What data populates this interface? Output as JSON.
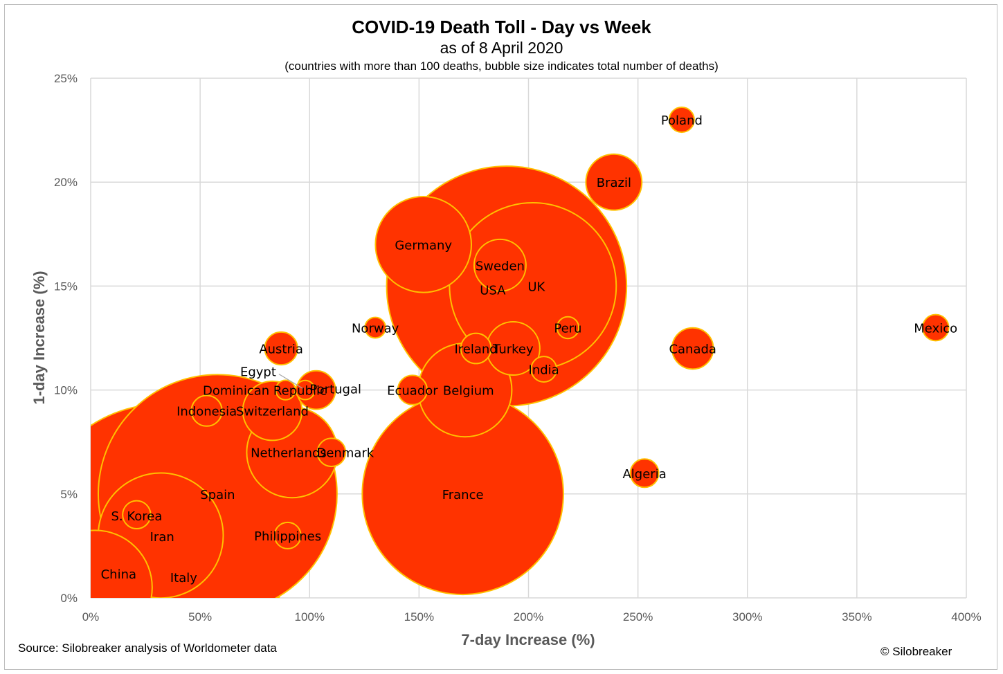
{
  "chart_data": {
    "type": "bubble",
    "title": "COVID-19 Death Toll - Day vs Week",
    "subtitle": "as of 8 April 2020",
    "note": "(countries with more than 100 deaths, bubble size indicates total number of deaths)",
    "xlabel": "7-day Increase (%)",
    "ylabel": "1-day Increase (%)",
    "xlim": [
      0,
      400
    ],
    "ylim": [
      0,
      25
    ],
    "x_ticks": [
      "0%",
      "50%",
      "100%",
      "150%",
      "200%",
      "250%",
      "300%",
      "350%",
      "400%"
    ],
    "y_ticks": [
      "0%",
      "5%",
      "10%",
      "15%",
      "20%",
      "25%"
    ],
    "grid": true,
    "colors": {
      "bubble_fill": "#ff3300",
      "bubble_stroke": "#ffc000",
      "grid": "#d9d9d9"
    },
    "points": [
      {
        "label": "China",
        "x": 2,
        "y": 0.5,
        "size": 3335
      },
      {
        "label": "Italy",
        "x": 33,
        "y": 3,
        "size": 17669
      },
      {
        "label": "Spain",
        "x": 58,
        "y": 5,
        "size": 14555
      },
      {
        "label": "Iran",
        "x": 32,
        "y": 3,
        "size": 3993
      },
      {
        "label": "S. Korea",
        "x": 21,
        "y": 4,
        "size": 200
      },
      {
        "label": "France",
        "x": 170,
        "y": 5,
        "size": 10328
      },
      {
        "label": "USA",
        "x": 190,
        "y": 15,
        "size": 14695
      },
      {
        "label": "UK",
        "x": 202,
        "y": 15,
        "size": 7097
      },
      {
        "label": "Sweden",
        "x": 187,
        "y": 16,
        "size": 687
      },
      {
        "label": "Germany",
        "x": 152,
        "y": 17,
        "size": 2349
      },
      {
        "label": "Brazil",
        "x": 239,
        "y": 20,
        "size": 800
      },
      {
        "label": "Poland",
        "x": 270,
        "y": 23,
        "size": 159
      },
      {
        "label": "Mexico",
        "x": 386,
        "y": 13,
        "size": 174
      },
      {
        "label": "Peru",
        "x": 218,
        "y": 13,
        "size": 121
      },
      {
        "label": "Canada",
        "x": 275,
        "y": 12,
        "size": 435
      },
      {
        "label": "Turkey",
        "x": 193,
        "y": 12,
        "size": 725
      },
      {
        "label": "Ireland",
        "x": 176,
        "y": 12,
        "size": 235
      },
      {
        "label": "India",
        "x": 207,
        "y": 11,
        "size": 166
      },
      {
        "label": "Norway",
        "x": 130,
        "y": 13,
        "size": 108
      },
      {
        "label": "Austria",
        "x": 87,
        "y": 12,
        "size": 273
      },
      {
        "label": "Belgium",
        "x": 171,
        "y": 10,
        "size": 2240
      },
      {
        "label": "Ecuador",
        "x": 147,
        "y": 10,
        "size": 220
      },
      {
        "label": "Portugal",
        "x": 103,
        "y": 10,
        "size": 380
      },
      {
        "label": "Egypt",
        "x": 98,
        "y": 10,
        "size": 94
      },
      {
        "label": "Dominican Republic",
        "x": 89,
        "y": 10,
        "size": 98
      },
      {
        "label": "Switzerland",
        "x": 83,
        "y": 9,
        "size": 895
      },
      {
        "label": "Indonesia",
        "x": 53,
        "y": 9,
        "size": 240
      },
      {
        "label": "Netherlands",
        "x": 92,
        "y": 7,
        "size": 2101
      },
      {
        "label": "Denmark",
        "x": 110,
        "y": 7,
        "size": 203
      },
      {
        "label": "Philippines",
        "x": 90,
        "y": 3,
        "size": 177
      },
      {
        "label": "Algeria",
        "x": 253,
        "y": 6,
        "size": 205
      }
    ]
  },
  "footer": {
    "source": "Source: Silobreaker analysis of Worldometer data",
    "copyright": "© Silobreaker"
  }
}
